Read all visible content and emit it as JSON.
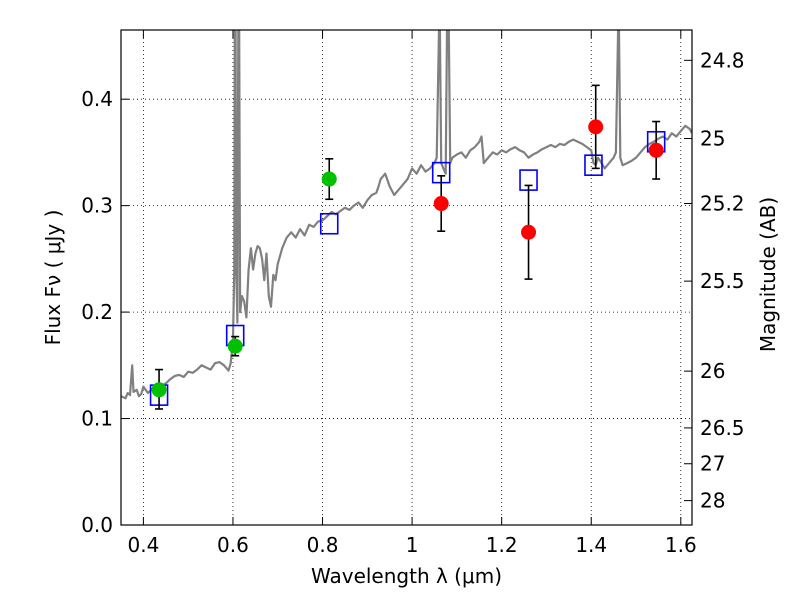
{
  "chart_data": {
    "type": "scatter",
    "xlabel": "Wavelength  λ (μm)",
    "ylabel": "Flux  Fν  ( μJy )",
    "ylabel_right": "Magnitude (AB)",
    "xlim": [
      0.35,
      1.625
    ],
    "ylim": [
      0.0,
      0.465
    ],
    "grid": true,
    "x_ticks": [
      {
        "value": 0.4,
        "label": "0.4"
      },
      {
        "value": 0.6,
        "label": "0.6"
      },
      {
        "value": 0.8,
        "label": "0.8"
      },
      {
        "value": 1.0,
        "label": "1"
      },
      {
        "value": 1.2,
        "label": "1.2"
      },
      {
        "value": 1.4,
        "label": "1.4"
      },
      {
        "value": 1.6,
        "label": "1.6"
      }
    ],
    "y_ticks": [
      {
        "value": 0.0,
        "label": "0.0"
      },
      {
        "value": 0.1,
        "label": "0.1"
      },
      {
        "value": 0.2,
        "label": "0.2"
      },
      {
        "value": 0.3,
        "label": "0.3"
      },
      {
        "value": 0.4,
        "label": "0.4"
      }
    ],
    "right_ticks": [
      {
        "mag": 24.8,
        "label": "24.8"
      },
      {
        "mag": 25,
        "label": "25"
      },
      {
        "mag": 25.2,
        "label": "25.2"
      },
      {
        "mag": 25.5,
        "label": "25.5"
      },
      {
        "mag": 26,
        "label": "26"
      },
      {
        "mag": 26.5,
        "label": "26.5"
      },
      {
        "mag": 27,
        "label": "27"
      },
      {
        "mag": 28,
        "label": "28"
      }
    ],
    "series": [
      {
        "kind": "line",
        "color": "#808080",
        "points": [
          [
            0.35,
            0.121
          ],
          [
            0.36,
            0.119
          ],
          [
            0.365,
            0.124
          ],
          [
            0.37,
            0.122
          ],
          [
            0.375,
            0.15
          ],
          [
            0.378,
            0.125
          ],
          [
            0.385,
            0.127
          ],
          [
            0.39,
            0.121
          ],
          [
            0.395,
            0.123
          ],
          [
            0.4,
            0.13
          ],
          [
            0.405,
            0.127
          ],
          [
            0.41,
            0.124
          ],
          [
            0.42,
            0.128
          ],
          [
            0.43,
            0.13
          ],
          [
            0.44,
            0.131
          ],
          [
            0.45,
            0.133
          ],
          [
            0.46,
            0.137
          ],
          [
            0.47,
            0.14
          ],
          [
            0.48,
            0.141
          ],
          [
            0.49,
            0.139
          ],
          [
            0.5,
            0.144
          ],
          [
            0.51,
            0.143
          ],
          [
            0.52,
            0.146
          ],
          [
            0.53,
            0.15
          ],
          [
            0.54,
            0.148
          ],
          [
            0.55,
            0.146
          ],
          [
            0.56,
            0.152
          ],
          [
            0.57,
            0.153
          ],
          [
            0.58,
            0.15
          ],
          [
            0.59,
            0.145
          ],
          [
            0.595,
            0.152
          ],
          [
            0.6,
            0.175
          ],
          [
            0.603,
            0.24
          ],
          [
            0.604,
            0.465
          ],
          [
            0.606,
            0.465
          ],
          [
            0.607,
            0.25
          ],
          [
            0.61,
            0.19
          ],
          [
            0.612,
            0.465
          ],
          [
            0.614,
            0.465
          ],
          [
            0.616,
            0.2
          ],
          [
            0.62,
            0.215
          ],
          [
            0.625,
            0.21
          ],
          [
            0.63,
            0.195
          ],
          [
            0.635,
            0.24
          ],
          [
            0.64,
            0.26
          ],
          [
            0.645,
            0.24
          ],
          [
            0.65,
            0.255
          ],
          [
            0.655,
            0.262
          ],
          [
            0.66,
            0.26
          ],
          [
            0.665,
            0.25
          ],
          [
            0.67,
            0.23
          ],
          [
            0.675,
            0.255
          ],
          [
            0.68,
            0.215
          ],
          [
            0.685,
            0.205
          ],
          [
            0.69,
            0.235
          ],
          [
            0.695,
            0.23
          ],
          [
            0.7,
            0.245
          ],
          [
            0.71,
            0.26
          ],
          [
            0.72,
            0.27
          ],
          [
            0.73,
            0.275
          ],
          [
            0.74,
            0.27
          ],
          [
            0.75,
            0.278
          ],
          [
            0.76,
            0.272
          ],
          [
            0.77,
            0.282
          ],
          [
            0.78,
            0.28
          ],
          [
            0.79,
            0.285
          ],
          [
            0.8,
            0.286
          ],
          [
            0.81,
            0.29
          ],
          [
            0.82,
            0.294
          ],
          [
            0.83,
            0.292
          ],
          [
            0.84,
            0.295
          ],
          [
            0.85,
            0.298
          ],
          [
            0.86,
            0.296
          ],
          [
            0.87,
            0.3
          ],
          [
            0.88,
            0.303
          ],
          [
            0.89,
            0.298
          ],
          [
            0.9,
            0.305
          ],
          [
            0.91,
            0.31
          ],
          [
            0.92,
            0.312
          ],
          [
            0.925,
            0.318
          ],
          [
            0.93,
            0.325
          ],
          [
            0.94,
            0.33
          ],
          [
            0.95,
            0.318
          ],
          [
            0.96,
            0.31
          ],
          [
            0.97,
            0.315
          ],
          [
            0.98,
            0.32
          ],
          [
            0.99,
            0.325
          ],
          [
            1.0,
            0.335
          ],
          [
            1.01,
            0.33
          ],
          [
            1.02,
            0.338
          ],
          [
            1.03,
            0.332
          ],
          [
            1.04,
            0.335
          ],
          [
            1.05,
            0.34
          ],
          [
            1.055,
            0.345
          ],
          [
            1.06,
            0.465
          ],
          [
            1.062,
            0.465
          ],
          [
            1.065,
            0.34
          ],
          [
            1.07,
            0.335
          ],
          [
            1.075,
            0.33
          ],
          [
            1.078,
            0.465
          ],
          [
            1.082,
            0.465
          ],
          [
            1.085,
            0.34
          ],
          [
            1.09,
            0.345
          ],
          [
            1.1,
            0.348
          ],
          [
            1.11,
            0.35
          ],
          [
            1.12,
            0.345
          ],
          [
            1.13,
            0.352
          ],
          [
            1.14,
            0.355
          ],
          [
            1.15,
            0.36
          ],
          [
            1.155,
            0.365
          ],
          [
            1.16,
            0.34
          ],
          [
            1.17,
            0.345
          ],
          [
            1.18,
            0.35
          ],
          [
            1.19,
            0.348
          ],
          [
            1.2,
            0.352
          ],
          [
            1.21,
            0.35
          ],
          [
            1.22,
            0.353
          ],
          [
            1.23,
            0.355
          ],
          [
            1.24,
            0.352
          ],
          [
            1.25,
            0.35
          ],
          [
            1.26,
            0.345
          ],
          [
            1.27,
            0.348
          ],
          [
            1.28,
            0.35
          ],
          [
            1.29,
            0.353
          ],
          [
            1.3,
            0.355
          ],
          [
            1.31,
            0.357
          ],
          [
            1.32,
            0.355
          ],
          [
            1.33,
            0.358
          ],
          [
            1.34,
            0.357
          ],
          [
            1.35,
            0.36
          ],
          [
            1.36,
            0.362
          ],
          [
            1.37,
            0.36
          ],
          [
            1.38,
            0.358
          ],
          [
            1.39,
            0.355
          ],
          [
            1.4,
            0.352
          ],
          [
            1.405,
            0.34
          ],
          [
            1.41,
            0.338
          ],
          [
            1.415,
            0.345
          ],
          [
            1.42,
            0.342
          ],
          [
            1.43,
            0.335
          ],
          [
            1.44,
            0.34
          ],
          [
            1.45,
            0.345
          ],
          [
            1.455,
            0.35
          ],
          [
            1.46,
            0.465
          ],
          [
            1.462,
            0.465
          ],
          [
            1.465,
            0.345
          ],
          [
            1.47,
            0.338
          ],
          [
            1.48,
            0.34
          ],
          [
            1.49,
            0.342
          ],
          [
            1.5,
            0.345
          ],
          [
            1.51,
            0.35
          ],
          [
            1.52,
            0.355
          ],
          [
            1.53,
            0.358
          ],
          [
            1.54,
            0.36
          ],
          [
            1.55,
            0.363
          ],
          [
            1.56,
            0.365
          ],
          [
            1.57,
            0.362
          ],
          [
            1.58,
            0.368
          ],
          [
            1.59,
            0.365
          ],
          [
            1.6,
            0.37
          ],
          [
            1.61,
            0.375
          ],
          [
            1.62,
            0.372
          ],
          [
            1.625,
            0.368
          ]
        ]
      },
      {
        "kind": "squares",
        "color": "#0000ff",
        "points": [
          [
            0.435,
            0.122
          ],
          [
            0.605,
            0.178
          ],
          [
            0.815,
            0.283
          ],
          [
            1.065,
            0.331
          ],
          [
            1.26,
            0.324
          ],
          [
            1.405,
            0.338
          ],
          [
            1.545,
            0.36
          ]
        ]
      },
      {
        "kind": "circles",
        "color": "#00c000",
        "points": [
          {
            "x": 0.435,
            "y": 0.127,
            "ylo": 0.109,
            "yhi": 0.146
          },
          {
            "x": 0.605,
            "y": 0.168,
            "ylo": 0.159,
            "yhi": 0.177
          },
          {
            "x": 0.815,
            "y": 0.325,
            "ylo": 0.306,
            "yhi": 0.344
          }
        ]
      },
      {
        "kind": "circles",
        "color": "#ff0000",
        "points": [
          {
            "x": 1.065,
            "y": 0.302,
            "ylo": 0.276,
            "yhi": 0.328
          },
          {
            "x": 1.26,
            "y": 0.275,
            "ylo": 0.231,
            "yhi": 0.319
          },
          {
            "x": 1.41,
            "y": 0.374,
            "ylo": 0.335,
            "yhi": 0.413
          },
          {
            "x": 1.545,
            "y": 0.352,
            "ylo": 0.325,
            "yhi": 0.379
          }
        ]
      }
    ]
  }
}
